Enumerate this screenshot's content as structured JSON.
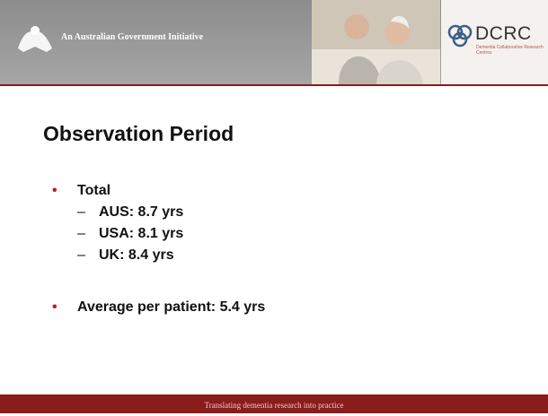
{
  "header": {
    "government_text": "An Australian Government Initiative",
    "logo_name": "DCRC",
    "logo_subtitle": "Dementia Collaborative Research Centres"
  },
  "title": "Observation Period",
  "bullets": [
    {
      "text": "Total",
      "items": [
        "AUS: 8.7 yrs",
        "USA: 8.1 yrs",
        "UK: 8.4 yrs"
      ]
    },
    {
      "text": "Average per patient: 5.4 yrs"
    }
  ],
  "footer": "Translating dementia research into practice"
}
